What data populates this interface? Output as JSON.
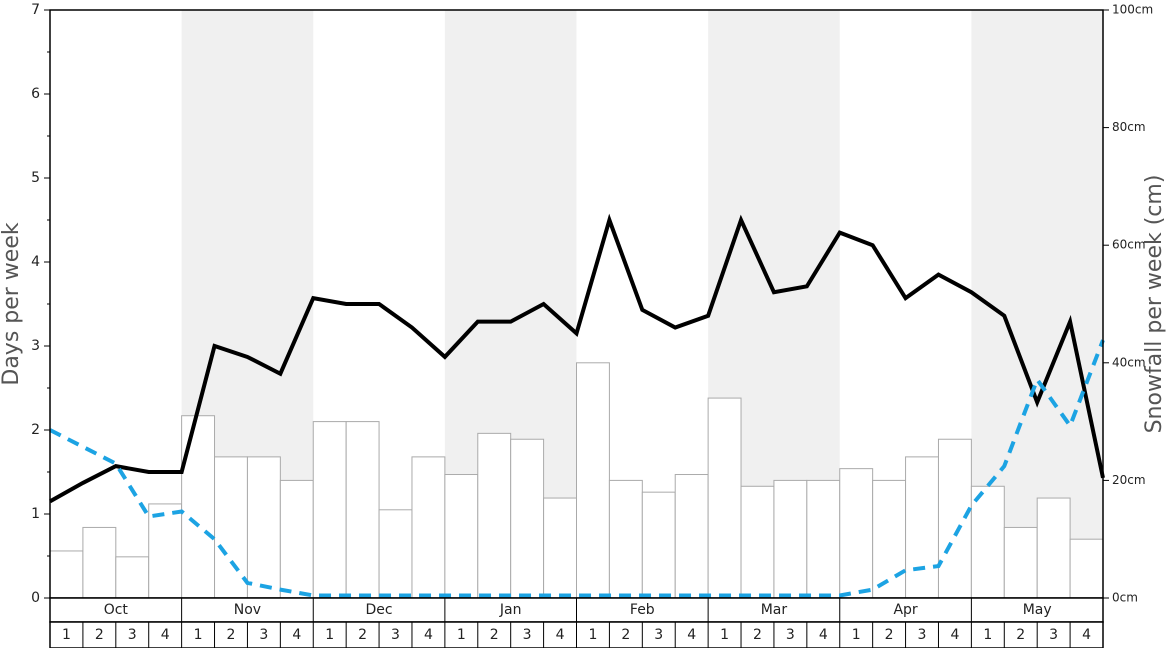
{
  "chart_data": {
    "type": "bar-line",
    "y_label": "Days per week",
    "y2_label": "Snowfall per week (cm)",
    "months": [
      "Oct",
      "Nov",
      "Dec",
      "Jan",
      "Feb",
      "Mar",
      "Apr",
      "May"
    ],
    "weeks": [
      1,
      2,
      3,
      4
    ],
    "ylim": [
      0,
      7
    ],
    "yticks": [
      0,
      1,
      2,
      3,
      4,
      5,
      6,
      7
    ],
    "y2lim": [
      0,
      100
    ],
    "y2ticks": [
      {
        "value": 0,
        "label": "0cm"
      },
      {
        "value": 20,
        "label": "20cm"
      },
      {
        "value": 40,
        "label": "40cm"
      },
      {
        "value": 60,
        "label": "60cm"
      },
      {
        "value": 80,
        "label": "80cm"
      },
      {
        "value": 100,
        "label": "100cm"
      }
    ],
    "bars": {
      "axis": "y2",
      "color": "#ffffff",
      "values": [
        8,
        12,
        7,
        16,
        31,
        24,
        24,
        20,
        30,
        30,
        15,
        24,
        21,
        28,
        27,
        17,
        40,
        20,
        18,
        21,
        34,
        19,
        20,
        20,
        22,
        20,
        24,
        27,
        19,
        12,
        17,
        10
      ]
    },
    "series": [
      {
        "color": "#000000",
        "dash": false,
        "values": [
          1.15,
          1.37,
          1.57,
          1.5,
          1.5,
          3.0,
          2.87,
          2.67,
          3.57,
          3.5,
          3.5,
          3.22,
          2.87,
          3.29,
          3.29,
          3.5,
          3.15,
          4.5,
          3.43,
          3.22,
          3.36,
          4.5,
          3.64,
          3.71,
          4.35,
          4.2,
          3.57,
          3.85,
          3.64,
          3.36,
          2.33,
          3.29,
          1.43
        ]
      },
      {
        "color": "#1ca3e3",
        "dash": true,
        "values": [
          2.0,
          1.8,
          1.6,
          0.97,
          1.03,
          0.7,
          0.18,
          0.1,
          0.03,
          0.03,
          0.03,
          0.03,
          0.03,
          0.03,
          0.03,
          0.03,
          0.03,
          0.03,
          0.03,
          0.03,
          0.03,
          0.03,
          0.03,
          0.03,
          0.03,
          0.1,
          0.33,
          0.38,
          1.1,
          1.57,
          2.6,
          2.05,
          3.07
        ]
      }
    ],
    "band_color": "#f0f0f0"
  }
}
